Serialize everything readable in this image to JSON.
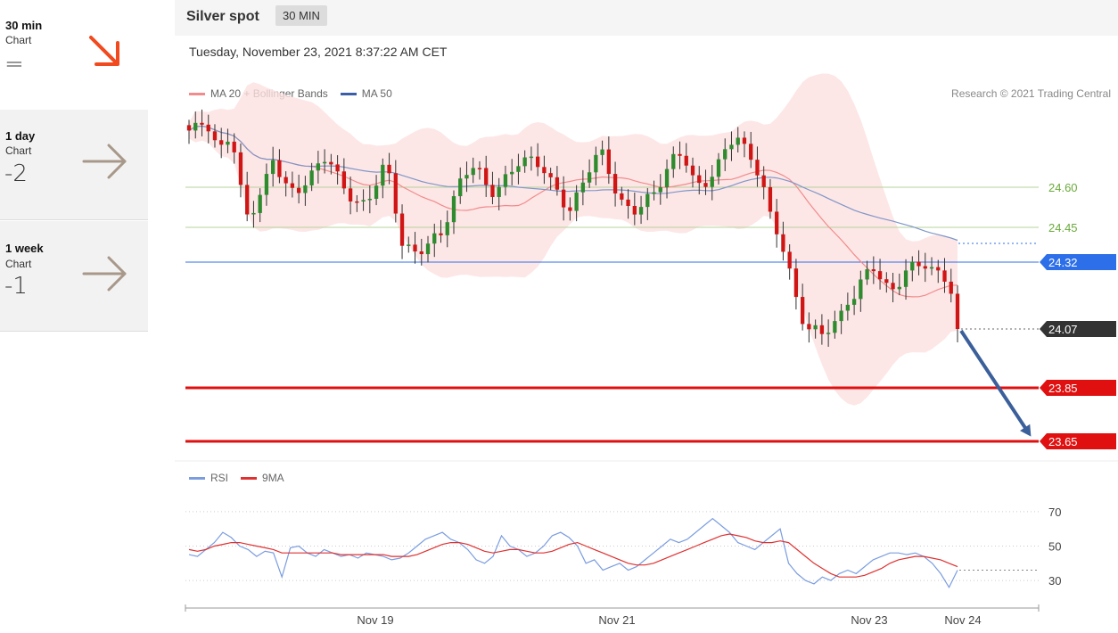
{
  "sidebar": {
    "items": [
      {
        "timeframe": "30 min",
        "chart_label": "Chart",
        "score": "=",
        "trend": "down"
      },
      {
        "timeframe": "1 day",
        "chart_label": "Chart",
        "score": "-2",
        "trend": "neutral"
      },
      {
        "timeframe": "1 week",
        "chart_label": "Chart",
        "score": "-1",
        "trend": "neutral"
      }
    ]
  },
  "header": {
    "instrument": "Silver spot",
    "timeframe_badge": "30 MIN"
  },
  "datetime": "Tuesday, November 23, 2021 8:37:22 AM CET",
  "legend": {
    "ma20": "MA 20 + Bollinger Bands",
    "ma50": "MA 50",
    "rsi": "RSI",
    "ma9": "9MA"
  },
  "copyright": "Research © 2021 Trading Central",
  "colors": {
    "ma20": "#f28b8b",
    "ma50": "#4a6fb5",
    "band": "#fde0e0",
    "up": "#2e8b2e",
    "down": "#d01515",
    "support": "#e01010",
    "resistance_green": "#6aaa3a",
    "pivot": "#2d6fe8",
    "current": "#333333",
    "rsi": "#7b9de0",
    "ma9": "#e03030"
  },
  "chart_data": [
    {
      "type": "candlestick",
      "x_ticks": [
        "Nov 19",
        "Nov 21",
        "Nov 23",
        "Nov 24"
      ],
      "y_range": [
        23.55,
        24.9
      ],
      "candle_count": 120,
      "close_path": [
        24.8,
        24.82,
        24.86,
        24.78,
        24.74,
        24.8,
        24.6,
        24.48,
        24.56,
        24.62,
        24.7,
        24.62,
        24.58,
        24.6,
        24.64,
        24.66,
        24.7,
        24.68,
        24.62,
        24.58,
        24.54,
        24.52,
        24.6,
        24.68,
        24.64,
        24.4,
        24.36,
        24.34,
        24.38,
        24.42,
        24.44,
        24.52,
        24.6,
        24.66,
        24.7,
        24.62,
        24.58,
        24.6,
        24.64,
        24.7,
        24.72,
        24.7,
        24.66,
        24.6,
        24.56,
        24.52,
        24.58,
        24.64,
        24.7,
        24.72,
        24.64,
        24.56,
        24.52,
        24.5,
        24.54,
        24.58,
        24.64,
        24.7,
        24.72,
        24.68,
        24.6,
        24.62,
        24.66,
        24.7,
        24.76,
        24.78,
        24.74,
        24.7,
        24.6,
        24.46,
        24.4,
        24.3,
        24.18,
        24.08,
        24.06,
        24.04,
        24.08,
        24.12,
        24.18,
        24.2,
        24.26,
        24.3,
        24.26,
        24.22,
        24.24,
        24.28,
        24.3,
        24.32,
        24.3,
        24.28,
        24.24,
        24.07
      ],
      "levels": [
        {
          "label": "24.60",
          "value": 24.6,
          "role": "resistance"
        },
        {
          "label": "24.45",
          "value": 24.45,
          "role": "resistance"
        },
        {
          "label": "24.32",
          "value": 24.32,
          "role": "pivot"
        },
        {
          "label": "24.07",
          "value": 24.07,
          "role": "last"
        },
        {
          "label": "23.85",
          "value": 23.85,
          "role": "support"
        },
        {
          "label": "23.65",
          "value": 23.65,
          "role": "support"
        }
      ],
      "forecast_arrow": {
        "from": 24.07,
        "to": 23.65
      }
    },
    {
      "type": "line",
      "y_ticks": [
        "70",
        "50",
        "30"
      ],
      "y_range": [
        15,
        85
      ],
      "series": [
        {
          "name": "RSI",
          "values": [
            45,
            44,
            48,
            52,
            58,
            55,
            50,
            48,
            44,
            47,
            46,
            32,
            49,
            50,
            46,
            44,
            48,
            46,
            44,
            45,
            43,
            46,
            45,
            44,
            42,
            43,
            46,
            50,
            54,
            56,
            58,
            54,
            52,
            48,
            42,
            40,
            44,
            56,
            50,
            48,
            44,
            46,
            50,
            56,
            58,
            55,
            50,
            40,
            42,
            36,
            38,
            40,
            36,
            38,
            42,
            46,
            50,
            54,
            52,
            54,
            58,
            62,
            66,
            62,
            58,
            52,
            50,
            48,
            52,
            56,
            60,
            40,
            34,
            30,
            28,
            32,
            30,
            34,
            36,
            34,
            38,
            42,
            44,
            46,
            46,
            45,
            46,
            44,
            40,
            34,
            26,
            36
          ]
        },
        {
          "name": "9MA",
          "values": [
            48,
            47,
            48,
            50,
            51,
            52,
            52,
            51,
            50,
            49,
            48,
            46,
            46,
            46,
            46,
            46,
            46,
            46,
            45,
            45,
            45,
            45,
            45,
            45,
            44,
            44,
            44,
            45,
            47,
            49,
            51,
            52,
            52,
            51,
            49,
            47,
            46,
            47,
            48,
            48,
            47,
            46,
            46,
            47,
            49,
            51,
            52,
            50,
            48,
            46,
            44,
            42,
            40,
            39,
            39,
            40,
            42,
            44,
            46,
            48,
            50,
            52,
            54,
            56,
            57,
            56,
            55,
            53,
            52,
            52,
            53,
            52,
            48,
            44,
            40,
            37,
            34,
            32,
            32,
            32,
            33,
            35,
            37,
            40,
            42,
            43,
            44,
            44,
            43,
            42,
            40,
            38
          ]
        }
      ]
    }
  ]
}
